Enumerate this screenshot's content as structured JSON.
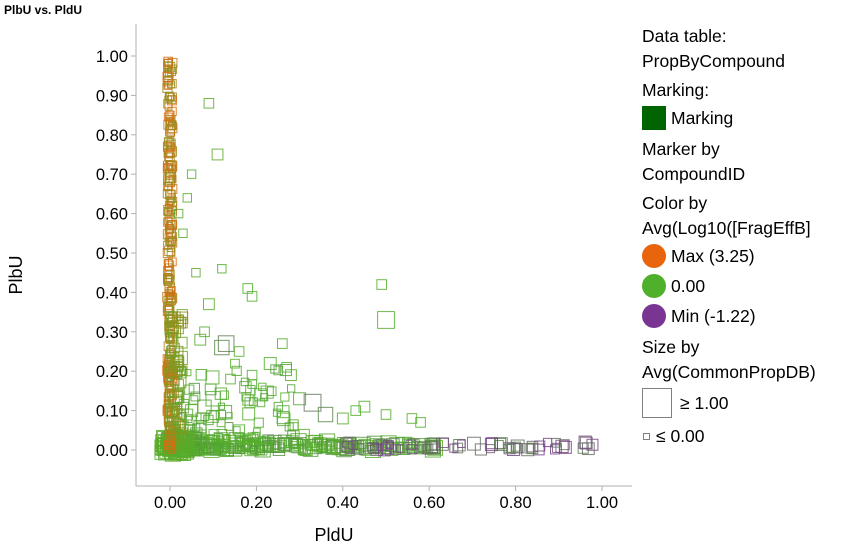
{
  "chart_data": {
    "type": "scatter",
    "title": "PlbU vs. PldU",
    "xlabel": "PldU",
    "ylabel": "PlbU",
    "xlim": [
      -0.06,
      1.06
    ],
    "ylim": [
      -0.05,
      1.04
    ],
    "x_ticks": [
      "0.00",
      "0.20",
      "0.40",
      "0.60",
      "0.80",
      "1.00"
    ],
    "y_ticks": [
      "0.00",
      "0.10",
      "0.20",
      "0.30",
      "0.40",
      "0.50",
      "0.60",
      "0.70",
      "0.80",
      "0.90",
      "1.00"
    ],
    "marker": "open-square",
    "color_scale": {
      "min": -1.22,
      "mid": 0.0,
      "max": 3.25
    },
    "size_scale": {
      "min": 0.0,
      "max": 1.0
    },
    "points": [
      {
        "x": 0.09,
        "y": 0.88,
        "c": 0.2,
        "s": 0.3
      },
      {
        "x": 0.11,
        "y": 0.75,
        "c": 0.3,
        "s": 0.4
      },
      {
        "x": 0.05,
        "y": 0.7,
        "c": 0.1,
        "s": 0.2
      },
      {
        "x": 0.04,
        "y": 0.64,
        "c": 0.2,
        "s": 0.2
      },
      {
        "x": 0.12,
        "y": 0.46,
        "c": 0.1,
        "s": 0.2
      },
      {
        "x": 0.18,
        "y": 0.41,
        "c": 0.0,
        "s": 0.3
      },
      {
        "x": 0.19,
        "y": 0.39,
        "c": 0.1,
        "s": 0.3
      },
      {
        "x": 0.09,
        "y": 0.37,
        "c": 0.2,
        "s": 0.4
      },
      {
        "x": 0.08,
        "y": 0.3,
        "c": 0.1,
        "s": 0.3
      },
      {
        "x": 0.07,
        "y": 0.28,
        "c": 0.2,
        "s": 0.4
      },
      {
        "x": 0.13,
        "y": 0.27,
        "c": -0.5,
        "s": 0.8
      },
      {
        "x": 0.12,
        "y": 0.26,
        "c": -0.4,
        "s": 0.7
      },
      {
        "x": 0.16,
        "y": 0.25,
        "c": 0.1,
        "s": 0.3
      },
      {
        "x": 0.19,
        "y": 0.19,
        "c": 0.0,
        "s": 0.3
      },
      {
        "x": 0.14,
        "y": 0.18,
        "c": 0.1,
        "s": 0.3
      },
      {
        "x": 0.21,
        "y": 0.14,
        "c": 0.0,
        "s": 0.5
      },
      {
        "x": 0.26,
        "y": 0.27,
        "c": 0.1,
        "s": 0.3
      },
      {
        "x": 0.27,
        "y": 0.21,
        "c": 0.0,
        "s": 0.3
      },
      {
        "x": 0.28,
        "y": 0.19,
        "c": 0.1,
        "s": 0.4
      },
      {
        "x": 0.3,
        "y": 0.13,
        "c": -0.1,
        "s": 0.5
      },
      {
        "x": 0.33,
        "y": 0.12,
        "c": -0.6,
        "s": 0.9
      },
      {
        "x": 0.36,
        "y": 0.09,
        "c": -0.4,
        "s": 0.7
      },
      {
        "x": 0.4,
        "y": 0.08,
        "c": 0.0,
        "s": 0.4
      },
      {
        "x": 0.43,
        "y": 0.1,
        "c": 0.1,
        "s": 0.3
      },
      {
        "x": 0.45,
        "y": 0.11,
        "c": 0.0,
        "s": 0.4
      },
      {
        "x": 0.5,
        "y": 0.33,
        "c": 0.0,
        "s": 0.9
      },
      {
        "x": 0.5,
        "y": 0.09,
        "c": 0.1,
        "s": 0.3
      },
      {
        "x": 0.49,
        "y": 0.42,
        "c": 0.1,
        "s": 0.3
      },
      {
        "x": 0.56,
        "y": 0.08,
        "c": 0.1,
        "s": 0.3
      },
      {
        "x": 0.58,
        "y": 0.07,
        "c": 0.0,
        "s": 0.3
      },
      {
        "x": 0.06,
        "y": 0.45,
        "c": 0.3,
        "s": 0.2
      },
      {
        "x": 0.03,
        "y": 0.55,
        "c": 0.2,
        "s": 0.2
      },
      {
        "x": 0.02,
        "y": 0.6,
        "c": 0.3,
        "s": 0.2
      },
      {
        "x": 0.1,
        "y": 0.13,
        "c": 0.0,
        "s": 0.7
      },
      {
        "x": 0.08,
        "y": 0.11,
        "c": -0.2,
        "s": 0.6
      },
      {
        "x": 0.05,
        "y": 0.1,
        "c": 0.1,
        "s": 0.5
      },
      {
        "x": 0.04,
        "y": 0.09,
        "c": 0.2,
        "s": 0.4
      },
      {
        "x": 0.12,
        "y": 0.04,
        "c": 0.1,
        "s": 0.3
      },
      {
        "x": 0.16,
        "y": 0.05,
        "c": 0.0,
        "s": 0.4
      }
    ]
  },
  "legend": {
    "data_table_label": "Data table:",
    "data_table_value": "PropByCompound",
    "marking_label": "Marking:",
    "marking_item": "Marking",
    "marking_color": "#006400",
    "marker_by_label": "Marker by",
    "marker_by_value": "CompoundID",
    "color_by_label": "Color by",
    "color_by_value": "Avg(Log10([FragEffB]",
    "color_max": "Max (3.25)",
    "color_mid": "0.00",
    "color_min": "Min (-1.22)",
    "color_max_hex": "#e8650e",
    "color_mid_hex": "#4fb02b",
    "color_min_hex": "#7a3592",
    "size_by_label": "Size by",
    "size_by_value": "Avg(CommonPropDB)",
    "size_max": "≥ 1.00",
    "size_min": "≤ 0.00"
  }
}
